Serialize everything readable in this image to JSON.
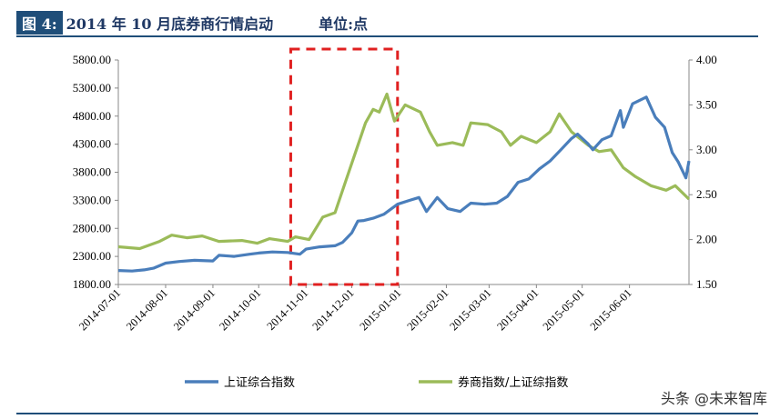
{
  "header": {
    "figure_label": "图 4:",
    "title": "2014 年 10 月底券商行情启动",
    "unit": "单位:点"
  },
  "watermark": "头条 @未来智库",
  "colors": {
    "sse": "#4a7ebb",
    "ratio": "#9bbb59",
    "highlight": "#e02020",
    "rule": "#1f4e79"
  },
  "chart_data": {
    "type": "line",
    "x_axis": {
      "ticks": [
        "2014-07-01",
        "2014-08-01",
        "2014-09-01",
        "2014-10-01",
        "2014-11-01",
        "2014-12-01",
        "2015-01-01",
        "2015-02-01",
        "2015-03-01",
        "2015-04-01",
        "2015-05-01",
        "2015-06-01"
      ]
    },
    "y_left": {
      "min": 1800,
      "max": 5800,
      "ticks": [
        "1800.00",
        "2300.00",
        "2800.00",
        "3300.00",
        "3800.00",
        "4300.00",
        "4800.00",
        "5300.00",
        "5800.00"
      ]
    },
    "y_right": {
      "min": 1.5,
      "max": 4.0,
      "ticks": [
        "1.50",
        "2.00",
        "2.50",
        "3.00",
        "3.50",
        "4.00"
      ]
    },
    "highlight_box": {
      "x_start": "2014-10-22",
      "x_end": "2014-12-31"
    },
    "series": [
      {
        "name": "上证综合指数",
        "axis": "left",
        "points": [
          [
            "2014-07-01",
            2050
          ],
          [
            "2014-07-10",
            2040
          ],
          [
            "2014-07-18",
            2060
          ],
          [
            "2014-07-24",
            2090
          ],
          [
            "2014-08-01",
            2180
          ],
          [
            "2014-08-10",
            2210
          ],
          [
            "2014-08-20",
            2230
          ],
          [
            "2014-09-01",
            2220
          ],
          [
            "2014-09-05",
            2320
          ],
          [
            "2014-09-15",
            2300
          ],
          [
            "2014-09-25",
            2340
          ],
          [
            "2014-10-01",
            2360
          ],
          [
            "2014-10-10",
            2380
          ],
          [
            "2014-10-20",
            2370
          ],
          [
            "2014-10-28",
            2340
          ],
          [
            "2014-11-01",
            2430
          ],
          [
            "2014-11-10",
            2470
          ],
          [
            "2014-11-20",
            2490
          ],
          [
            "2014-11-25",
            2550
          ],
          [
            "2014-12-01",
            2720
          ],
          [
            "2014-12-05",
            2930
          ],
          [
            "2014-12-09",
            2940
          ],
          [
            "2014-12-15",
            2980
          ],
          [
            "2014-12-22",
            3050
          ],
          [
            "2014-12-31",
            3230
          ],
          [
            "2015-01-08",
            3300
          ],
          [
            "2015-01-14",
            3350
          ],
          [
            "2015-01-19",
            3100
          ],
          [
            "2015-01-26",
            3350
          ],
          [
            "2015-02-02",
            3150
          ],
          [
            "2015-02-10",
            3100
          ],
          [
            "2015-02-17",
            3250
          ],
          [
            "2015-02-26",
            3230
          ],
          [
            "2015-03-06",
            3250
          ],
          [
            "2015-03-13",
            3370
          ],
          [
            "2015-03-20",
            3620
          ],
          [
            "2015-03-27",
            3680
          ],
          [
            "2015-04-03",
            3860
          ],
          [
            "2015-04-10",
            4000
          ],
          [
            "2015-04-17",
            4200
          ],
          [
            "2015-04-24",
            4400
          ],
          [
            "2015-04-28",
            4480
          ],
          [
            "2015-05-05",
            4300
          ],
          [
            "2015-05-08",
            4200
          ],
          [
            "2015-05-14",
            4380
          ],
          [
            "2015-05-20",
            4450
          ],
          [
            "2015-05-26",
            4900
          ],
          [
            "2015-05-28",
            4600
          ],
          [
            "2015-06-03",
            5020
          ],
          [
            "2015-06-12",
            5140
          ],
          [
            "2015-06-18",
            4780
          ],
          [
            "2015-06-24",
            4600
          ],
          [
            "2015-06-29",
            4150
          ],
          [
            "2015-07-03",
            3980
          ],
          [
            "2015-07-08",
            3700
          ],
          [
            "2015-07-10",
            4000
          ]
        ]
      },
      {
        "name": "券商指数/上证综指数",
        "axis": "right",
        "points": [
          [
            "2014-07-01",
            1.92
          ],
          [
            "2014-07-15",
            1.9
          ],
          [
            "2014-07-28",
            1.98
          ],
          [
            "2014-08-05",
            2.05
          ],
          [
            "2014-08-15",
            2.02
          ],
          [
            "2014-08-25",
            2.04
          ],
          [
            "2014-09-05",
            1.98
          ],
          [
            "2014-09-20",
            1.99
          ],
          [
            "2014-09-30",
            1.96
          ],
          [
            "2014-10-08",
            2.01
          ],
          [
            "2014-10-20",
            1.98
          ],
          [
            "2014-10-25",
            2.03
          ],
          [
            "2014-11-03",
            2.0
          ],
          [
            "2014-11-12",
            2.25
          ],
          [
            "2014-11-20",
            2.3
          ],
          [
            "2014-11-27",
            2.65
          ],
          [
            "2014-12-03",
            2.95
          ],
          [
            "2014-12-10",
            3.3
          ],
          [
            "2014-12-15",
            3.45
          ],
          [
            "2014-12-19",
            3.42
          ],
          [
            "2014-12-24",
            3.62
          ],
          [
            "2014-12-29",
            3.32
          ],
          [
            "2015-01-05",
            3.5
          ],
          [
            "2015-01-15",
            3.42
          ],
          [
            "2015-01-21",
            3.2
          ],
          [
            "2015-01-26",
            3.05
          ],
          [
            "2015-02-05",
            3.08
          ],
          [
            "2015-02-12",
            3.05
          ],
          [
            "2015-02-17",
            3.3
          ],
          [
            "2015-02-28",
            3.28
          ],
          [
            "2015-03-09",
            3.2
          ],
          [
            "2015-03-15",
            3.05
          ],
          [
            "2015-03-22",
            3.15
          ],
          [
            "2015-04-01",
            3.08
          ],
          [
            "2015-04-10",
            3.2
          ],
          [
            "2015-04-16",
            3.4
          ],
          [
            "2015-04-24",
            3.2
          ],
          [
            "2015-05-05",
            3.05
          ],
          [
            "2015-05-12",
            2.98
          ],
          [
            "2015-05-20",
            3.0
          ],
          [
            "2015-05-28",
            2.8
          ],
          [
            "2015-06-05",
            2.7
          ],
          [
            "2015-06-15",
            2.6
          ],
          [
            "2015-06-25",
            2.55
          ],
          [
            "2015-07-01",
            2.6
          ],
          [
            "2015-07-10",
            2.45
          ]
        ]
      }
    ]
  }
}
